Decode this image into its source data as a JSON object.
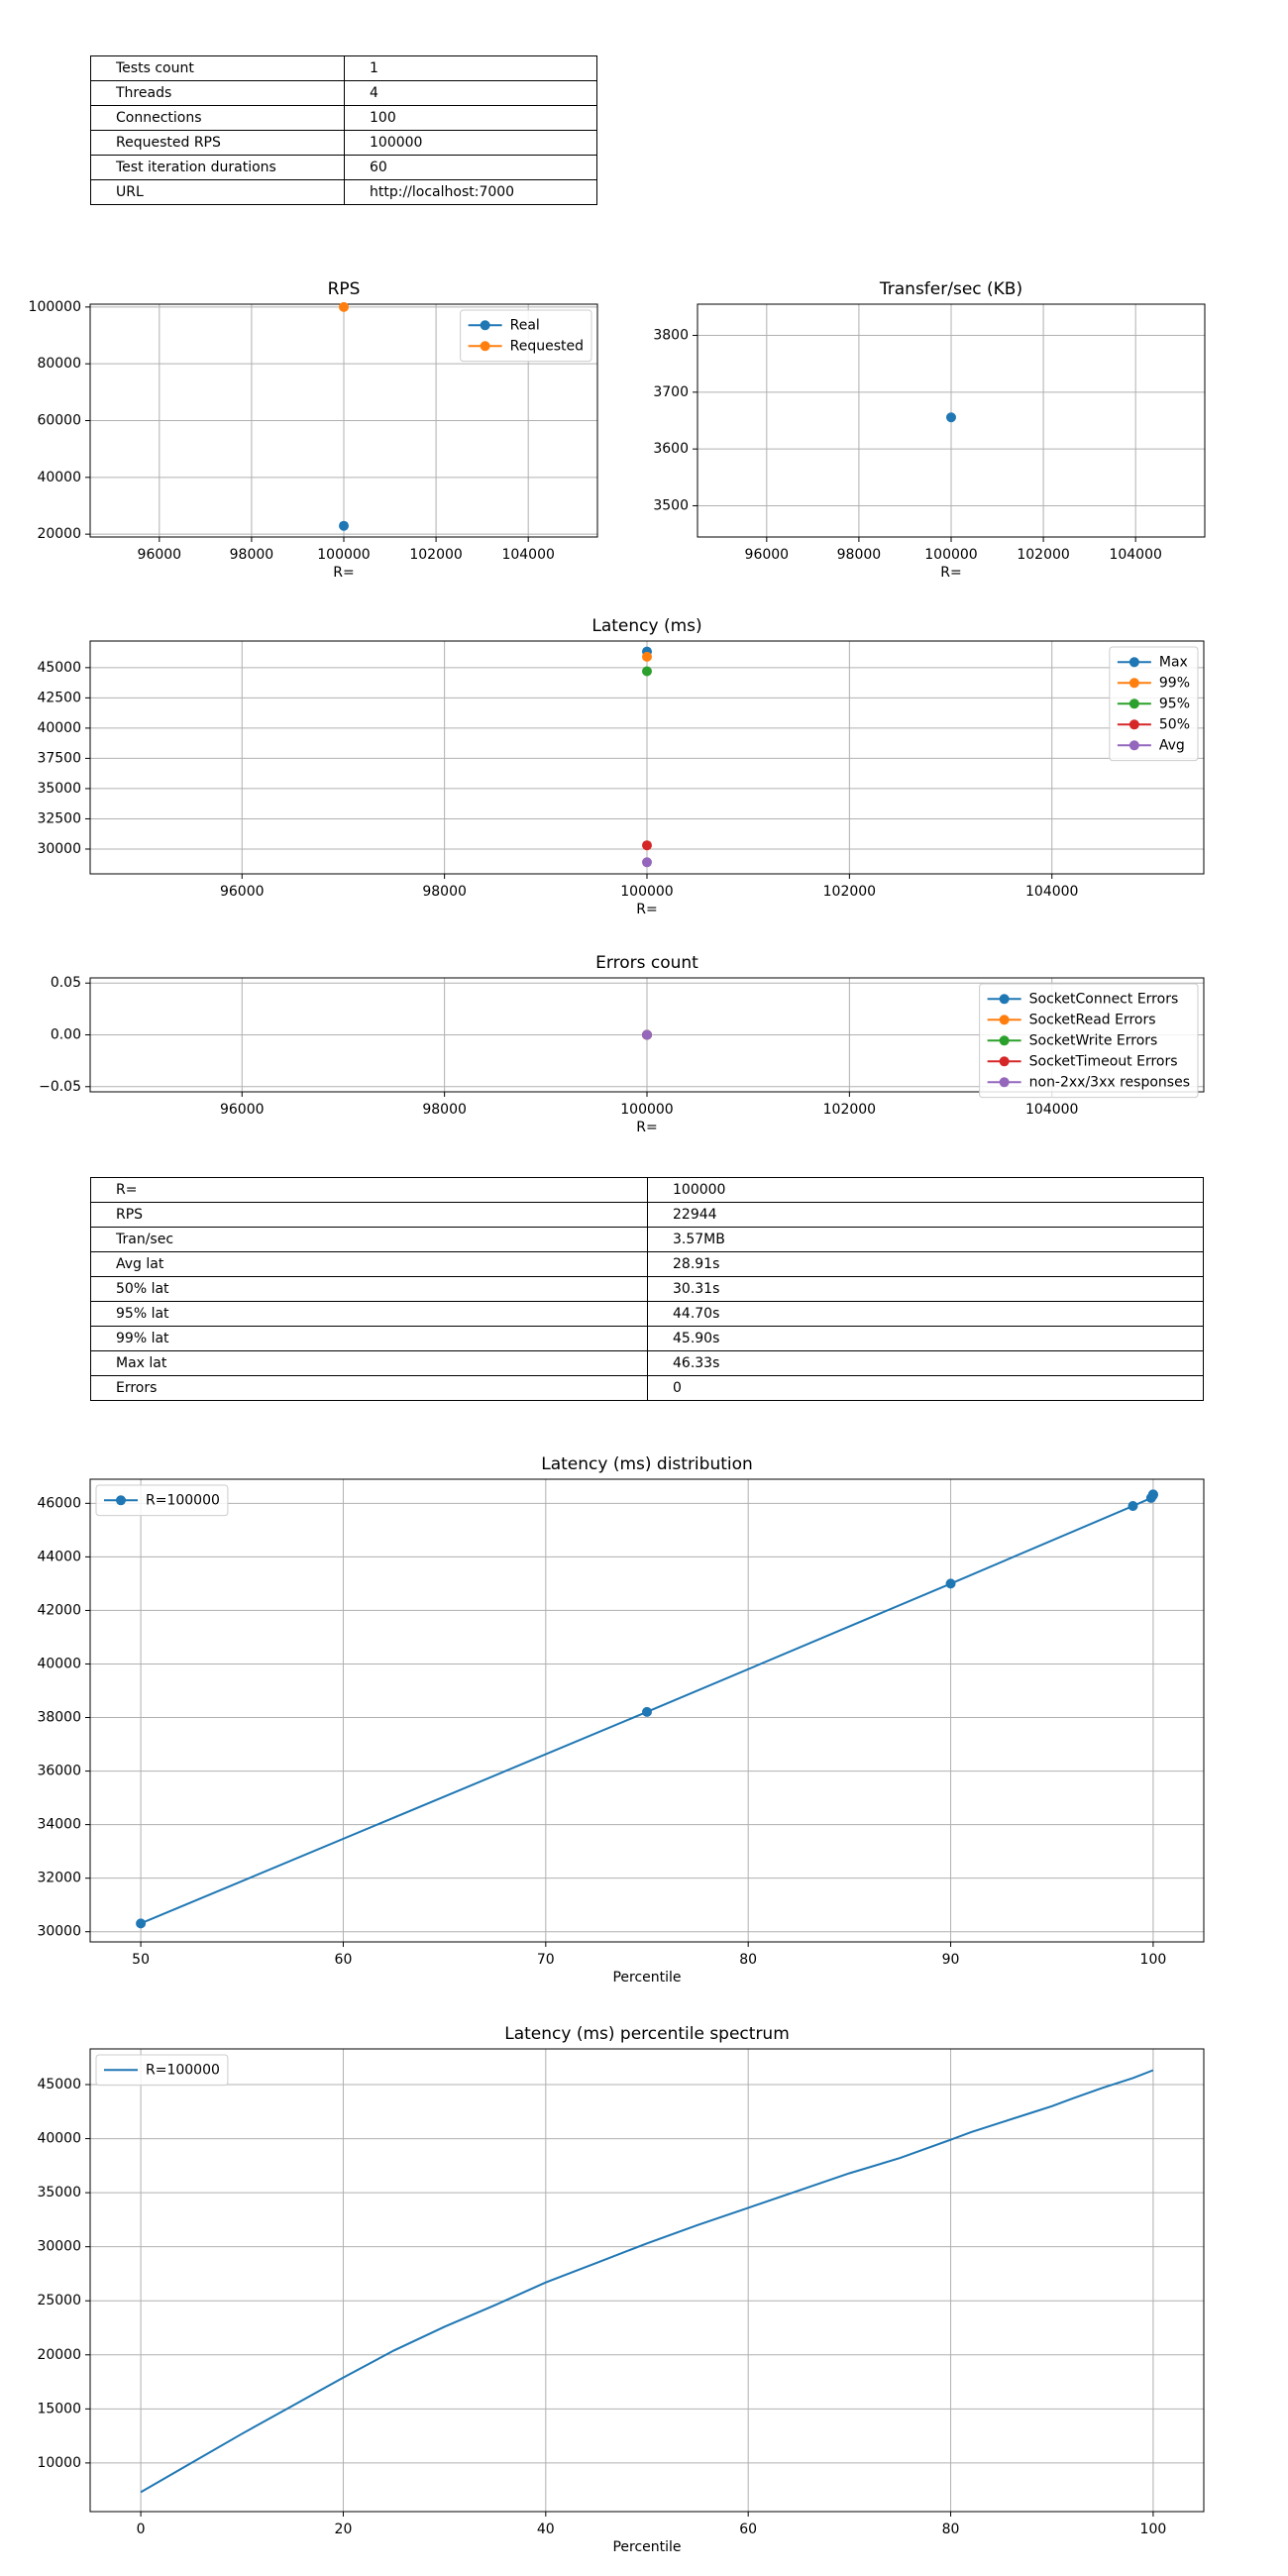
{
  "params_table": [
    {
      "key": "Tests count",
      "value": "1"
    },
    {
      "key": "Threads",
      "value": "4"
    },
    {
      "key": "Connections",
      "value": "100"
    },
    {
      "key": "Requested RPS",
      "value": "100000"
    },
    {
      "key": "Test iteration durations",
      "value": "60"
    },
    {
      "key": "URL",
      "value": "http://localhost:7000"
    }
  ],
  "results_table": [
    {
      "key": "R=",
      "value": "100000"
    },
    {
      "key": "RPS",
      "value": "22944"
    },
    {
      "key": "Tran/sec",
      "value": "3.57MB"
    },
    {
      "key": "Avg lat",
      "value": "28.91s"
    },
    {
      "key": "50% lat",
      "value": "30.31s"
    },
    {
      "key": "95% lat",
      "value": "44.70s"
    },
    {
      "key": "99% lat",
      "value": "45.90s"
    },
    {
      "key": "Max lat",
      "value": "46.33s"
    },
    {
      "key": "Errors",
      "value": "0"
    }
  ],
  "colors": {
    "blue": "#1f77b4",
    "orange": "#ff7f0e",
    "green": "#2ca02c",
    "red": "#d62728",
    "purple": "#9467bd",
    "grid": "#b0b0b0"
  },
  "chart_data": [
    {
      "id": "rps",
      "type": "scatter",
      "title": "RPS",
      "xlabel": "R=",
      "ylabel": "",
      "xlim": [
        94500,
        105500
      ],
      "ylim": [
        19000,
        101000
      ],
      "xticks": [
        96000,
        98000,
        100000,
        102000,
        104000
      ],
      "yticks": [
        20000,
        40000,
        60000,
        80000,
        100000
      ],
      "grid": true,
      "legend": "top-right",
      "series": [
        {
          "name": "Real",
          "color": "#1f77b4",
          "x": [
            100000
          ],
          "y": [
            22944
          ]
        },
        {
          "name": "Requested",
          "color": "#ff7f0e",
          "x": [
            100000
          ],
          "y": [
            100000
          ]
        }
      ]
    },
    {
      "id": "transfer",
      "type": "scatter",
      "title": "Transfer/sec (KB)",
      "xlabel": "R=",
      "ylabel": "",
      "xlim": [
        94500,
        105500
      ],
      "ylim": [
        3445,
        3855
      ],
      "xticks": [
        96000,
        98000,
        100000,
        102000,
        104000
      ],
      "yticks": [
        3500,
        3600,
        3700,
        3800
      ],
      "grid": true,
      "series": [
        {
          "color": "#1f77b4",
          "x": [
            100000
          ],
          "y": [
            3655.68
          ]
        }
      ]
    },
    {
      "id": "latency",
      "type": "scatter",
      "title": "Latency (ms)",
      "xlabel": "R=",
      "ylabel": "",
      "xlim": [
        94500,
        105500
      ],
      "ylim": [
        27950,
        47200
      ],
      "xticks": [
        96000,
        98000,
        100000,
        102000,
        104000
      ],
      "yticks": [
        30000,
        32500,
        35000,
        37500,
        40000,
        42500,
        45000
      ],
      "grid": true,
      "legend": "top-right",
      "series": [
        {
          "name": "Max",
          "color": "#1f77b4",
          "x": [
            100000
          ],
          "y": [
            46330
          ]
        },
        {
          "name": "99%",
          "color": "#ff7f0e",
          "x": [
            100000
          ],
          "y": [
            45900
          ]
        },
        {
          "name": "95%",
          "color": "#2ca02c",
          "x": [
            100000
          ],
          "y": [
            44700
          ]
        },
        {
          "name": "50%",
          "color": "#d62728",
          "x": [
            100000
          ],
          "y": [
            30310
          ]
        },
        {
          "name": "Avg",
          "color": "#9467bd",
          "x": [
            100000
          ],
          "y": [
            28910
          ]
        }
      ]
    },
    {
      "id": "errors",
      "type": "scatter",
      "title": "Errors count",
      "xlabel": "R=",
      "ylabel": "",
      "xlim": [
        94500,
        105500
      ],
      "ylim": [
        -0.055,
        0.055
      ],
      "xticks": [
        96000,
        98000,
        100000,
        102000,
        104000
      ],
      "yticks": [
        -0.05,
        0.0,
        0.05
      ],
      "ytick_labels": [
        "−0.05",
        "0.00",
        "0.05"
      ],
      "grid": true,
      "legend": "top-right",
      "series": [
        {
          "name": "SocketConnect Errors",
          "color": "#1f77b4",
          "x": [
            100000
          ],
          "y": [
            0
          ]
        },
        {
          "name": "SocketRead Errors",
          "color": "#ff7f0e",
          "x": [
            100000
          ],
          "y": [
            0
          ]
        },
        {
          "name": "SocketWrite Errors",
          "color": "#2ca02c",
          "x": [
            100000
          ],
          "y": [
            0
          ]
        },
        {
          "name": "SocketTimeout Errors",
          "color": "#d62728",
          "x": [
            100000
          ],
          "y": [
            0
          ]
        },
        {
          "name": "non-2xx/3xx responses",
          "color": "#9467bd",
          "x": [
            100000
          ],
          "y": [
            0
          ]
        }
      ]
    },
    {
      "id": "distribution",
      "type": "line",
      "title": "Latency (ms) distribution",
      "xlabel": "Percentile",
      "ylabel": "",
      "xlim": [
        47.5,
        102.5
      ],
      "ylim": [
        29620,
        46900
      ],
      "xticks": [
        50,
        60,
        70,
        80,
        90,
        100
      ],
      "yticks": [
        30000,
        32000,
        34000,
        36000,
        38000,
        40000,
        42000,
        44000,
        46000
      ],
      "grid": true,
      "legend": "top-left",
      "markers": true,
      "series": [
        {
          "name": "R=100000",
          "color": "#1f77b4",
          "x": [
            50,
            75,
            90,
            99,
            99.9,
            99.99,
            99.999,
            100
          ],
          "y": [
            30310,
            38210,
            43000,
            45900,
            46200,
            46300,
            46330,
            46330
          ]
        }
      ]
    },
    {
      "id": "spectrum",
      "type": "line",
      "title": "Latency (ms) percentile spectrum",
      "xlabel": "Percentile",
      "ylabel": "",
      "xlim": [
        -5,
        105
      ],
      "ylim": [
        5500,
        48300
      ],
      "xticks": [
        0,
        20,
        40,
        60,
        80,
        100
      ],
      "yticks": [
        10000,
        15000,
        20000,
        25000,
        30000,
        35000,
        40000,
        45000
      ],
      "grid": true,
      "legend": "top-left",
      "markers": false,
      "series": [
        {
          "name": "R=100000",
          "color": "#1f77b4",
          "x": [
            0,
            5,
            10,
            15,
            20,
            25,
            30,
            35,
            40,
            45,
            50,
            55,
            60,
            65,
            70,
            75,
            80,
            82,
            85,
            88,
            90,
            92,
            95,
            98,
            100
          ],
          "y": [
            7300,
            10000,
            12700,
            15300,
            17900,
            20400,
            22600,
            24600,
            26700,
            28500,
            30310,
            32000,
            33600,
            35200,
            36800,
            38210,
            39900,
            40600,
            41500,
            42400,
            43000,
            43700,
            44700,
            45600,
            46330
          ]
        }
      ]
    }
  ]
}
